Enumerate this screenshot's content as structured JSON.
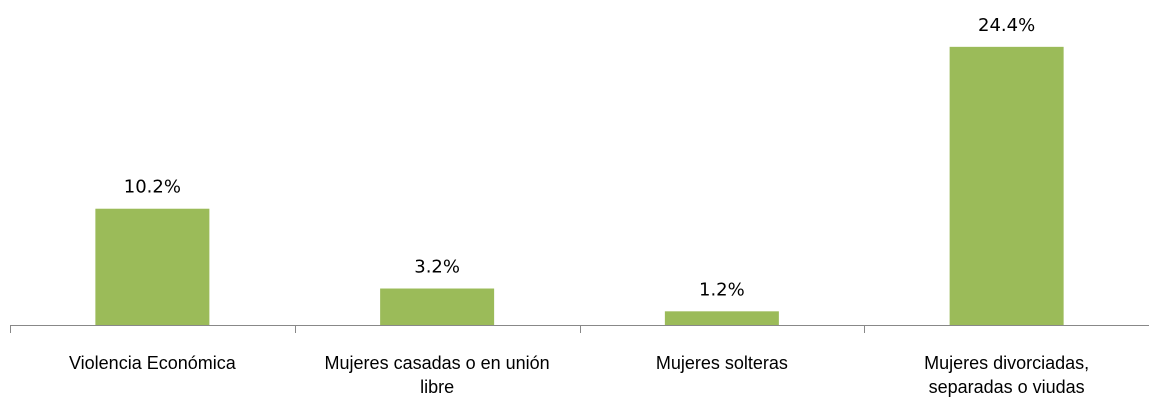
{
  "chart_data": {
    "type": "bar",
    "categories": [
      "Violencia Económica",
      "Mujeres casadas o en unión libre",
      "Mujeres solteras",
      "Mujeres divorciadas, separadas o viudas"
    ],
    "values": [
      10.2,
      3.2,
      1.2,
      24.4
    ],
    "value_labels": [
      "10.2%",
      "3.2%",
      "1.2%",
      "24.4%"
    ],
    "color": "#9bbb59",
    "ylim": [
      0,
      25
    ]
  }
}
